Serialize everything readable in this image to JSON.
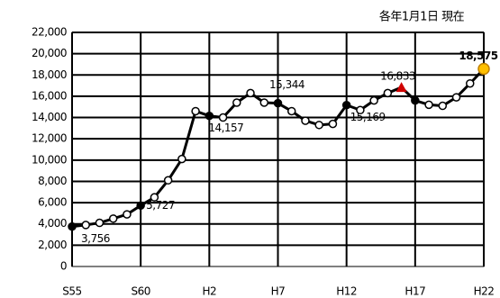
{
  "chart_data": {
    "type": "line",
    "title": "各年1月1日 現在",
    "categories": [
      "S55",
      null,
      null,
      null,
      null,
      "S60",
      null,
      null,
      null,
      null,
      "H2",
      null,
      null,
      null,
      null,
      "H7",
      null,
      null,
      null,
      null,
      "H12",
      null,
      null,
      null,
      null,
      "H17",
      null,
      null,
      null,
      null,
      "H22"
    ],
    "series": [
      {
        "name": null,
        "color": "#000000",
        "values": [
          3756,
          3900,
          4100,
          4500,
          4900,
          5727,
          6500,
          8100,
          10100,
          14600,
          14157,
          14000,
          15400,
          16300,
          15400,
          15344,
          14600,
          13700,
          13300,
          13400,
          15169,
          14700,
          15600,
          16300,
          16833,
          15600,
          15200,
          15100,
          15900,
          17200,
          18575
        ],
        "value_labels": [
          "3,756",
          null,
          null,
          null,
          null,
          "5,727",
          null,
          null,
          null,
          null,
          "14,157",
          null,
          null,
          null,
          null,
          "15,344",
          null,
          null,
          null,
          null,
          "15,169",
          null,
          null,
          null,
          "16,833",
          null,
          null,
          null,
          null,
          null,
          "18,575"
        ],
        "point_colors": [
          "#000000",
          "#ffffff",
          "#ffffff",
          "#ffffff",
          "#ffffff",
          "#000000",
          "#ffffff",
          "#ffffff",
          "#ffffff",
          "#ffffff",
          "#000000",
          "#ffffff",
          "#ffffff",
          "#ffffff",
          "#ffffff",
          "#000000",
          "#ffffff",
          "#ffffff",
          "#ffffff",
          "#ffffff",
          "#000000",
          "#ffffff",
          "#ffffff",
          "#ffffff",
          "#d00000",
          "#000000",
          "#ffffff",
          "#ffffff",
          "#ffffff",
          "#ffffff",
          "#ffc000"
        ],
        "point_shapes": [
          "circle",
          "circle",
          "circle",
          "circle",
          "circle",
          "circle",
          "circle",
          "circle",
          "circle",
          "circle",
          "circle",
          "circle",
          "circle",
          "circle",
          "circle",
          "circle",
          "circle",
          "circle",
          "circle",
          "circle",
          "circle",
          "circle",
          "circle",
          "circle",
          "triangle",
          "circle",
          "circle",
          "circle",
          "circle",
          "circle",
          "circle"
        ]
      }
    ],
    "ylim": [
      0,
      22000
    ],
    "yticks": [
      0,
      {
        "value": 2000,
        "label": "2,000"
      },
      {
        "value": 4000,
        "label": "4,000"
      },
      {
        "value": 6000,
        "label": "6,000"
      },
      {
        "value": 8000,
        "label": "8,000"
      },
      {
        "value": 10000,
        "label": "10,000"
      },
      {
        "value": 12000,
        "label": "12,000"
      },
      {
        "value": 14000,
        "label": "14,000"
      },
      {
        "value": 16000,
        "label": "16,000"
      },
      {
        "value": 18000,
        "label": "18,000"
      },
      {
        "value": 20000,
        "label": "20,000"
      },
      {
        "value": 22000,
        "label": "22,000"
      }
    ],
    "grid": true
  }
}
